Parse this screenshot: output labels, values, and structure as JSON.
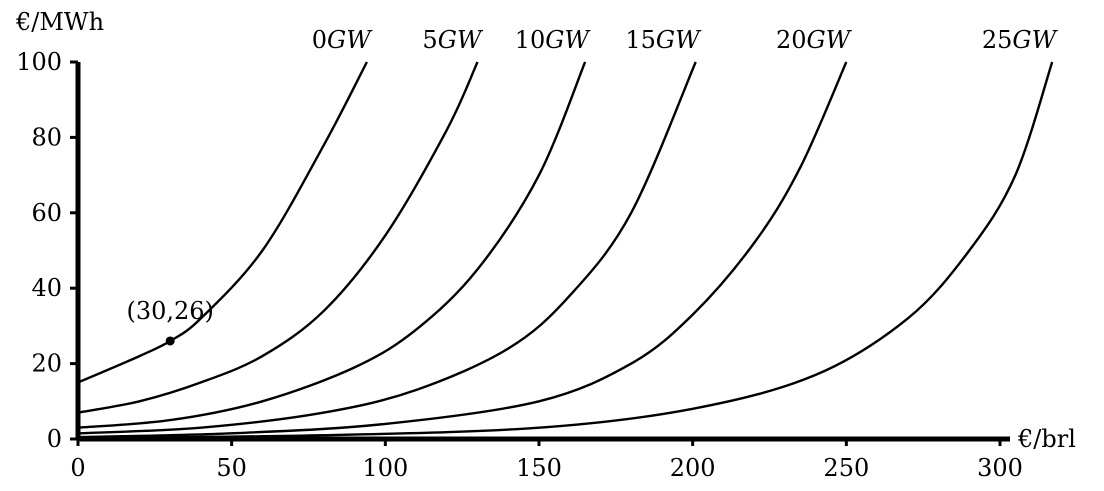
{
  "chart_data": {
    "type": "line",
    "title": "",
    "xlabel": "€/brl",
    "ylabel": "€/MWh",
    "xlim": [
      0,
      300
    ],
    "ylim": [
      0,
      100
    ],
    "x_ticks": [
      "0",
      "50",
      "100",
      "150",
      "200",
      "250",
      "300"
    ],
    "y_ticks": [
      "0",
      "20",
      "40",
      "60",
      "80",
      "100"
    ],
    "grid": false,
    "legend": "none",
    "series": [
      {
        "num": "0",
        "unit": "GW",
        "name": "0GW",
        "x": [
          0,
          20,
          30,
          40,
          60,
          80,
          94
        ],
        "y": [
          15,
          22,
          26,
          32,
          50,
          78,
          100
        ]
      },
      {
        "num": "5",
        "unit": "GW",
        "name": "5GW",
        "x": [
          0,
          20,
          40,
          60,
          80,
          100,
          120,
          130
        ],
        "y": [
          7,
          10,
          15,
          22,
          34,
          54,
          82,
          100
        ]
      },
      {
        "num": "10",
        "unit": "GW",
        "name": "10GW",
        "x": [
          0,
          30,
          60,
          90,
          110,
          130,
          150,
          165
        ],
        "y": [
          3,
          5,
          10,
          19,
          29,
          45,
          70,
          100
        ]
      },
      {
        "num": "15",
        "unit": "GW",
        "name": "15GW",
        "x": [
          0,
          40,
          80,
          110,
          140,
          160,
          180,
          201
        ],
        "y": [
          1.5,
          3,
          7,
          13,
          24,
          38,
          60,
          100
        ]
      },
      {
        "num": "20",
        "unit": "GW",
        "name": "20GW",
        "x": [
          0,
          50,
          100,
          150,
          180,
          200,
          220,
          235,
          250
        ],
        "y": [
          0.5,
          1.5,
          4,
          10,
          20,
          33,
          52,
          72,
          100
        ]
      },
      {
        "num": "25",
        "unit": "GW",
        "name": "25GW",
        "x": [
          0,
          80,
          150,
          200,
          240,
          270,
          290,
          305,
          317
        ],
        "y": [
          0.2,
          1,
          3,
          8,
          17,
          32,
          50,
          70,
          100
        ]
      }
    ],
    "annotations": [
      {
        "text": "(30,26)",
        "x": 30,
        "y": 26
      }
    ]
  }
}
